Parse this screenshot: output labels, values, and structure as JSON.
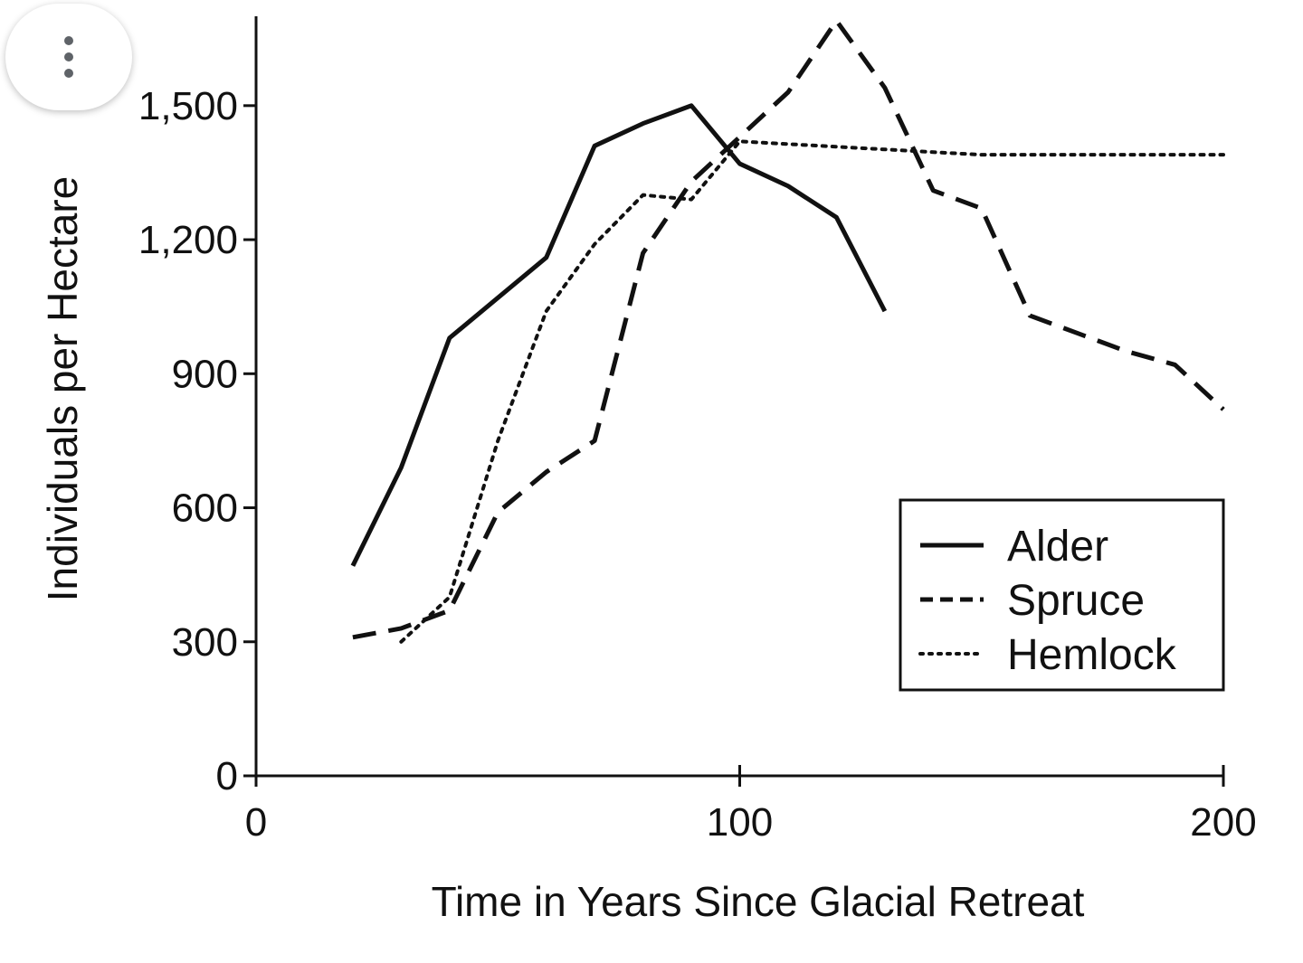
{
  "menu": {
    "icon": "more-vert-icon"
  },
  "chart_data": {
    "type": "line",
    "xlabel": "Time in Years Since Glacial Retreat",
    "ylabel": "Individuals per Hectare",
    "xlim": [
      0,
      200
    ],
    "ylim": [
      0,
      1700
    ],
    "xticks": [
      0,
      100,
      200
    ],
    "xtick_labels": [
      "0",
      "100",
      "200"
    ],
    "yticks": [
      0,
      300,
      600,
      900,
      1200,
      1500
    ],
    "ytick_labels": [
      "0",
      "300",
      "600",
      "900",
      "1,200",
      "1,500"
    ],
    "grid": false,
    "legend": {
      "placement": "bottom-right",
      "entries": [
        "Alder",
        "Spruce",
        "Hemlock"
      ]
    },
    "series": [
      {
        "name": "Alder",
        "style": "solid",
        "color": "#111111",
        "x": [
          20,
          30,
          40,
          50,
          60,
          70,
          80,
          90,
          100,
          110,
          120,
          130
        ],
        "y": [
          470,
          690,
          980,
          1070,
          1160,
          1410,
          1460,
          1500,
          1370,
          1320,
          1250,
          1040
        ]
      },
      {
        "name": "Spruce",
        "style": "dashed",
        "color": "#111111",
        "x": [
          20,
          30,
          40,
          50,
          60,
          70,
          80,
          90,
          100,
          110,
          120,
          130,
          140,
          150,
          160,
          170,
          180,
          190,
          200
        ],
        "y": [
          310,
          330,
          370,
          590,
          680,
          750,
          1170,
          1330,
          1430,
          1530,
          1690,
          1540,
          1310,
          1270,
          1030,
          990,
          950,
          920,
          820
        ]
      },
      {
        "name": "Hemlock",
        "style": "dotted",
        "color": "#111111",
        "x": [
          30,
          40,
          50,
          60,
          70,
          80,
          90,
          100,
          150,
          200
        ],
        "y": [
          300,
          400,
          750,
          1040,
          1190,
          1300,
          1290,
          1420,
          1390,
          1390
        ]
      }
    ]
  }
}
